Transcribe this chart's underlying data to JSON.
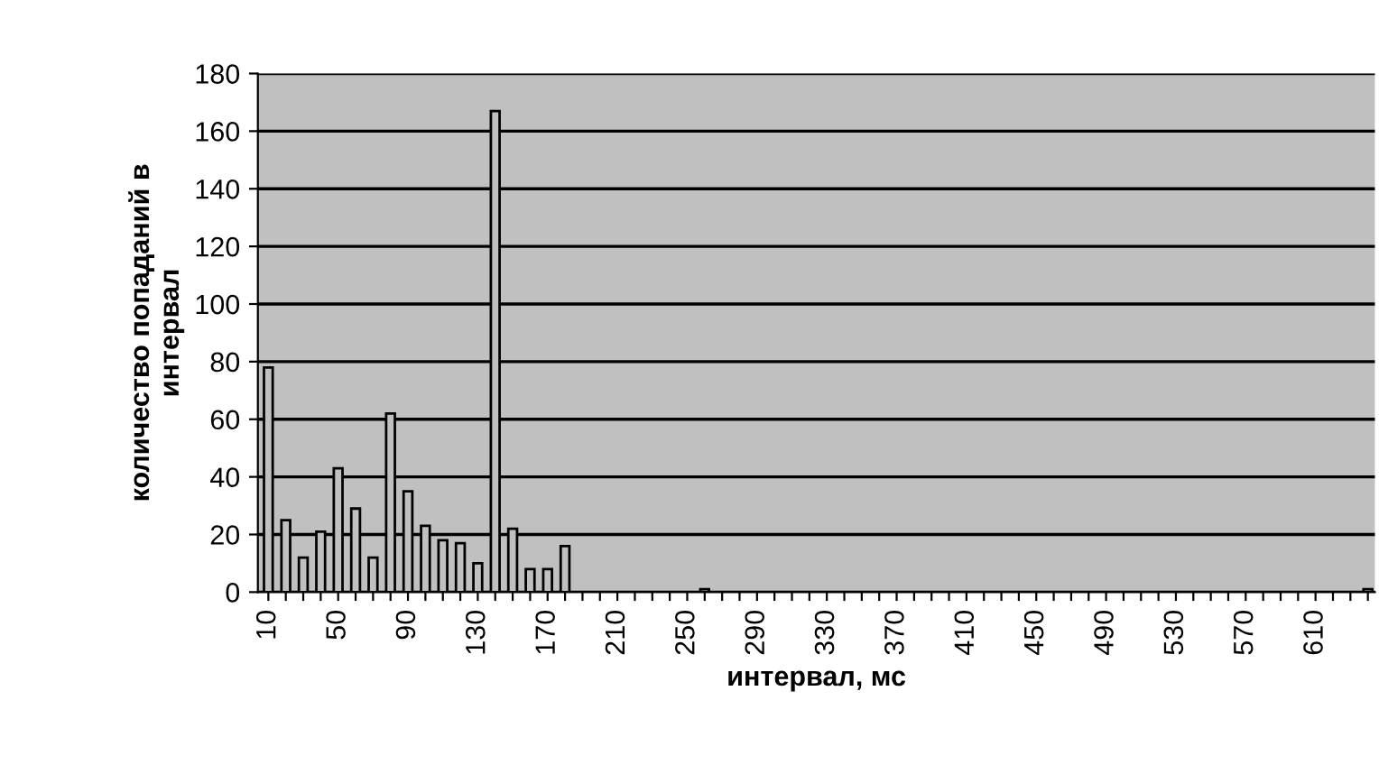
{
  "chart_data": {
    "type": "bar",
    "xlabel": "интервал, мс",
    "ylabel": "количество попаданий в\nинтервал",
    "categories": [
      "10",
      null,
      null,
      null,
      "50",
      null,
      null,
      null,
      "90",
      null,
      null,
      null,
      "130",
      null,
      null,
      null,
      "170",
      null,
      null,
      null,
      "210",
      null,
      null,
      null,
      "250",
      null,
      null,
      null,
      "290",
      null,
      null,
      null,
      "330",
      null,
      null,
      null,
      "370",
      null,
      null,
      null,
      "410",
      null,
      null,
      null,
      "450",
      null,
      null,
      null,
      "490",
      null,
      null,
      null,
      "530",
      null,
      null,
      null,
      "570",
      null,
      null,
      null,
      "610",
      null,
      null,
      null
    ],
    "values": [
      78,
      25,
      12,
      21,
      43,
      29,
      12,
      62,
      35,
      23,
      18,
      17,
      10,
      167,
      22,
      8,
      8,
      16,
      0,
      0,
      0,
      0,
      0,
      0,
      0,
      1,
      0,
      0,
      0,
      0,
      0,
      0,
      0,
      0,
      0,
      0,
      0,
      0,
      0,
      0,
      0,
      0,
      0,
      0,
      0,
      0,
      0,
      0,
      0,
      0,
      0,
      0,
      0,
      0,
      0,
      0,
      0,
      0,
      0,
      0,
      0,
      0,
      0,
      1
    ],
    "color": "#c0c0c0",
    "ylim": [
      0,
      180
    ],
    "yticks": [
      0,
      20,
      40,
      60,
      80,
      100,
      120,
      140,
      160,
      180
    ],
    "grid": "y",
    "legend": false
  }
}
